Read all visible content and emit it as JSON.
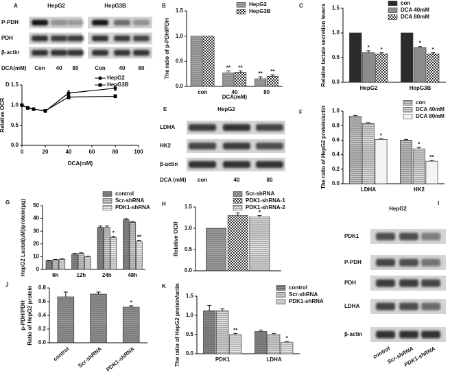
{
  "chart_data": [
    {
      "label": "B",
      "type": "bar",
      "y_label": "The ratio of p-PDH/PDH",
      "x_label": "DCA(mM)",
      "categories": [
        "con",
        "40",
        "80"
      ],
      "series": [
        {
          "name": "HepG2",
          "color": "#b0b0b0",
          "pattern": "lines",
          "values": [
            1,
            0.27,
            0.15
          ],
          "errors": [
            null,
            0.04,
            0.04
          ],
          "sig": [
            null,
            "**",
            "**"
          ]
        },
        {
          "name": "HepG3B",
          "color": "#ffffff",
          "pattern": "checker",
          "values": [
            1,
            0.28,
            0.2
          ],
          "errors": [
            null,
            0.03,
            0.03
          ],
          "sig": [
            null,
            "**",
            "**"
          ]
        }
      ],
      "ylim": [
        0,
        1.5
      ],
      "yticks": [
        {
          "value": 0,
          "label": "0.0"
        },
        {
          "value": 0.5,
          "label": "0.5"
        },
        {
          "value": 1,
          "label": "1.0"
        },
        {
          "value": 1.5,
          "label": "1.5"
        }
      ]
    },
    {
      "label": "C",
      "type": "bar",
      "y_label": "Relative lactate secretion levers",
      "categories": [
        "HepG2",
        "HepG3B"
      ],
      "series": [
        {
          "name": "con",
          "color": "#2b2b2b",
          "values": [
            1,
            1
          ]
        },
        {
          "name": "DCA 40mM",
          "color": "#8c8c8c",
          "values": [
            0.6,
            0.7
          ],
          "errors": [
            0.04,
            0.03
          ],
          "sig": [
            "*",
            "*"
          ]
        },
        {
          "name": "DCA 80mM",
          "color": "#ffffff",
          "pattern": "checker",
          "values": [
            0.57,
            0.57
          ],
          "errors": [
            0.03,
            0.03
          ],
          "sig": [
            "*",
            "*"
          ]
        }
      ],
      "ylim": [
        0,
        1.5
      ],
      "yticks": [
        {
          "value": 0,
          "label": "0.0"
        },
        {
          "value": 0.5,
          "label": "0.5"
        },
        {
          "value": 1,
          "label": "1.0"
        },
        {
          "value": 1.5,
          "label": "1.5"
        }
      ]
    },
    {
      "label": "D",
      "type": "line",
      "y_label": "Relative OCR",
      "x_label": "DCA(mM)",
      "x": [
        0,
        5,
        10,
        20,
        40,
        80
      ],
      "series": [
        {
          "name": "HepG2",
          "color": "#000000",
          "marker": "circle",
          "values": [
            1.0,
            0.93,
            0.9,
            0.85,
            1.3,
            1.42
          ],
          "errors": [
            0.03,
            0.03,
            0.03,
            0.03,
            0.06,
            0.06
          ]
        },
        {
          "name": "HepG3B",
          "color": "#000000",
          "marker": "square",
          "values": [
            1.0,
            0.93,
            0.9,
            0.86,
            1.2,
            1.22
          ],
          "errors": [
            0.03,
            0.03,
            0.03,
            0.03,
            0.05,
            0.04
          ]
        }
      ],
      "xlim": [
        0,
        100
      ],
      "xticks": [
        0,
        20,
        40,
        60,
        80,
        100
      ],
      "ylim": [
        0,
        1.5
      ],
      "yticks": [
        {
          "value": 0,
          "label": "0.0"
        },
        {
          "value": 0.5,
          "label": "0.5"
        },
        {
          "value": 1,
          "label": "1.0"
        },
        {
          "value": 1.5,
          "label": "1.5"
        }
      ]
    },
    {
      "label": "F",
      "type": "bar",
      "y_label": "The ratio of HepG2 protein/actin",
      "categories": [
        "LDHA",
        "HK2"
      ],
      "series": [
        {
          "name": "con",
          "color": "#c8c8c8",
          "pattern": "lines",
          "values": [
            0.93,
            0.6
          ],
          "errors": [
            0.01,
            0.01
          ]
        },
        {
          "name": "DCA 40mM",
          "color": "#e0e0e0",
          "pattern": "lines",
          "values": [
            0.83,
            0.48
          ],
          "errors": [
            0.01,
            0.02
          ],
          "sig": [
            null,
            "*"
          ]
        },
        {
          "name": "DCA 80mM",
          "color": "#f4f4f4",
          "values": [
            0.61,
            0.31
          ],
          "errors": [
            0.01,
            0.01
          ],
          "sig": [
            "*",
            "**"
          ]
        }
      ],
      "ylim": [
        0,
        1.0
      ],
      "yticks": [
        {
          "value": 0,
          "label": "0.0"
        },
        {
          "value": 0.2,
          "label": "0.2"
        },
        {
          "value": 0.4,
          "label": "0.4"
        },
        {
          "value": 0.6,
          "label": "0.6"
        },
        {
          "value": 0.8,
          "label": "0.8"
        },
        {
          "value": 1,
          "label": "1.0"
        }
      ]
    },
    {
      "label": "G",
      "type": "bar",
      "y_label": "HepG2 Lactat(uM)/protein(μg)",
      "categories": [
        "6h",
        "12h",
        "24h",
        "48h"
      ],
      "series": [
        {
          "name": "control",
          "color": "#8c8c8c",
          "pattern": "lines",
          "values": [
            7,
            12,
            33,
            39
          ],
          "errors": [
            0.3,
            0.5,
            1,
            0.8
          ]
        },
        {
          "name": "Scr-shRNA",
          "color": "#d8d8d8",
          "pattern": "lines",
          "values": [
            7.5,
            12.5,
            33,
            37
          ],
          "errors": [
            0.3,
            0.5,
            1,
            0.6
          ]
        },
        {
          "name": "PDK1-shRNA",
          "color": "#f4f4f4",
          "pattern": "lines",
          "values": [
            8,
            10,
            25,
            22
          ],
          "errors": [
            0.3,
            0.4,
            1,
            0.8
          ],
          "sig": [
            null,
            null,
            "*",
            "**"
          ]
        }
      ],
      "ylim": [
        0,
        50
      ],
      "yticks": [
        0,
        10,
        20,
        30,
        40,
        50
      ]
    },
    {
      "label": "H",
      "type": "bar",
      "y_label": "Relative OCR",
      "categories": [
        null
      ],
      "series": [
        {
          "name": "Scr-shRNA",
          "color": "#a8a8a8",
          "pattern": "lines",
          "values": [
            1.0
          ]
        },
        {
          "name": "PDK1-shRNA-1",
          "color": "#ffffff",
          "pattern": "checker",
          "values": [
            1.3
          ],
          "errors": [
            0.06
          ],
          "sig": [
            "*"
          ]
        },
        {
          "name": "PDK1-shRNA-2",
          "color": "#e8e8e8",
          "pattern": "lines",
          "values": [
            1.27
          ],
          "errors": [
            0.03
          ],
          "sig": [
            "*"
          ]
        }
      ],
      "ylim": [
        0,
        1.5
      ],
      "yticks": [
        {
          "value": 0,
          "label": "0.0"
        },
        {
          "value": 0.5,
          "label": "0.5"
        },
        {
          "value": 1,
          "label": "1.0"
        },
        {
          "value": 1.5,
          "label": "1.5"
        }
      ]
    },
    {
      "label": "J",
      "type": "bar",
      "y_label": [
        "Ratio of HepG2 protein",
        "p-PDH/PDH"
      ],
      "categories": [
        "control",
        "Scr-shRNA",
        "PDK1-shRNA"
      ],
      "color": "#9a9a9a",
      "pattern": "lines",
      "values": [
        0.67,
        0.71,
        0.52
      ],
      "errors": [
        0.07,
        0.03,
        0.02
      ],
      "sig": [
        null,
        null,
        "*"
      ],
      "ylim": [
        0,
        0.8
      ],
      "yticks": [
        {
          "value": 0,
          "label": "0.0"
        },
        {
          "value": 0.2,
          "label": "0.2"
        },
        {
          "value": 0.4,
          "label": "0.4"
        },
        {
          "value": 0.6,
          "label": "0.6"
        },
        {
          "value": 0.8,
          "label": "0.8"
        }
      ]
    },
    {
      "label": "K",
      "type": "bar",
      "y_label": "The ratio of HepG2 protein/actin",
      "categories": [
        "PDK1",
        "LDHA"
      ],
      "series": [
        {
          "name": "control",
          "color": "#8c8c8c",
          "pattern": "lines",
          "values": [
            1.12,
            0.58
          ],
          "errors": [
            0.14,
            0.04
          ]
        },
        {
          "name": "Scr-shRNA",
          "color": "#e4e4e4",
          "pattern": "lines",
          "values": [
            1.12,
            0.5
          ],
          "errors": [
            0.05,
            0.03
          ]
        },
        {
          "name": "PDK1-shRNA",
          "color": "#f6f6f6",
          "pattern": "lines",
          "values": [
            0.5,
            0.3
          ],
          "errors": [
            0.03,
            0.02
          ],
          "sig": [
            "**",
            "*"
          ]
        }
      ],
      "ylim": [
        0,
        1.5
      ],
      "yticks": [
        {
          "value": 0,
          "label": "0.0"
        },
        {
          "value": 0.5,
          "label": "0.5"
        },
        {
          "value": 1,
          "label": "1.0"
        },
        {
          "value": 1.5,
          "label": "1.5"
        }
      ]
    }
  ],
  "blots": [
    {
      "label": "A",
      "lines": [
        "HepG2",
        "HepG3B"
      ],
      "rows": [
        "P-PDH",
        "PDH",
        "β-actin"
      ],
      "lane_title": "DCA(mM)",
      "lanes": [
        "Con",
        "40",
        "80",
        "Con",
        "40",
        "80"
      ]
    },
    {
      "label": "E",
      "title": "HepG2",
      "rows": [
        "LDHA",
        "HK2",
        "β-actin"
      ],
      "lane_title": "DCA (mM)",
      "lanes": [
        "con",
        "40",
        "80"
      ]
    },
    {
      "label": "I",
      "title": "HepG2",
      "rows": [
        "PDK1",
        "P-PDH",
        "PDH",
        "LDHA",
        "β-actin"
      ],
      "lanes": [
        "control",
        "Scr-shRNA",
        "PDK1-shRNA"
      ]
    }
  ]
}
